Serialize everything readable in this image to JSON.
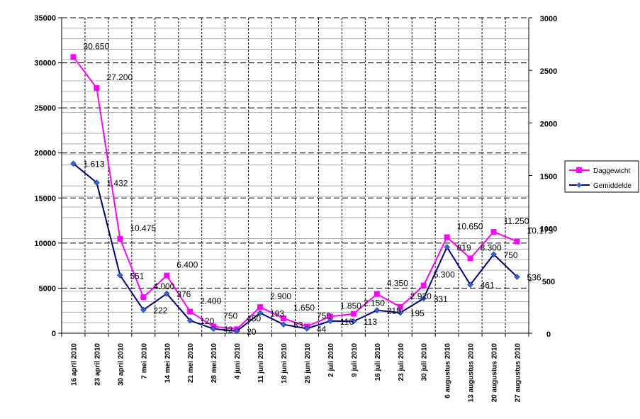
{
  "chart_data": {
    "type": "line",
    "categories": [
      "16 april 2010",
      "23 april 2010",
      "30 april 2010",
      "7 mei 2010",
      "14 mei 2010",
      "21 mei 2010",
      "28 mei 2010",
      "4 juni 2010",
      "11 juni 2010",
      "18 juni 2010",
      "25 juni 2010",
      "2 juli 2010",
      "9 juli 2010",
      "16 juli 2010",
      "23 juli 2010",
      "30 juli 2010",
      "6 augustus 2010",
      "13 augustus 2010",
      "20 augustus 2010",
      "27 augustus 2010"
    ],
    "y_left": {
      "ylim": [
        0,
        35000
      ],
      "ticks": [
        0,
        5000,
        10000,
        15000,
        20000,
        25000,
        30000,
        35000
      ]
    },
    "y_right": {
      "ylim": [
        0,
        3000
      ],
      "ticks": [
        0,
        500,
        1000,
        1500,
        2000,
        2500,
        3000
      ]
    },
    "grid": true,
    "legend_position": "right",
    "series": [
      {
        "name": "Daggewicht",
        "axis": "left",
        "color": "#ff00ff",
        "marker": "square",
        "values": [
          30650,
          27200,
          10475,
          4000,
          6400,
          2400,
          750,
          450,
          2900,
          1650,
          750,
          1850,
          2150,
          4350,
          2920,
          5300,
          10650,
          8300,
          11250,
          10175
        ],
        "labels": [
          "30.650",
          "27.200",
          "10.475",
          "4.000",
          "6.400",
          "2.400",
          "750",
          "450",
          "2.900",
          "1.650",
          "750",
          "1.850",
          "2.150",
          "4.350",
          "2.920",
          "5.300",
          "10.650",
          "8.300",
          "11.250",
          "10.175"
        ]
      },
      {
        "name": "Gemiddelde",
        "axis": "right",
        "color": "#000080",
        "marker": "diamond",
        "values": [
          1613,
          1432,
          551,
          222,
          376,
          120,
          42,
          20,
          193,
          83,
          44,
          116,
          113,
          218,
          195,
          331,
          819,
          461,
          750,
          536
        ],
        "labels": [
          "1.613",
          "1.432",
          "551",
          "222",
          "376",
          "120",
          "42",
          "20",
          "193",
          "83",
          "44",
          "116",
          "113",
          "218",
          "195",
          "331",
          "819",
          "461",
          "750",
          "536"
        ]
      }
    ]
  }
}
